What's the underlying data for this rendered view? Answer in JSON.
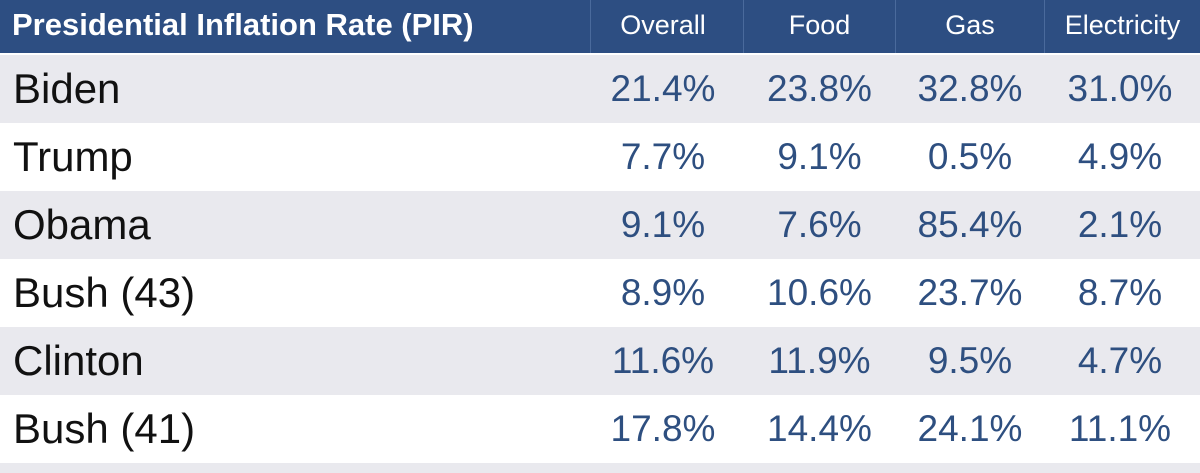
{
  "chart_data": {
    "type": "table",
    "title": "Presidential Inflation Rate (PIR)",
    "columns": [
      "Overall",
      "Food",
      "Gas",
      "Electricity"
    ],
    "rows": [
      {
        "name": "Biden",
        "values": [
          "21.4%",
          "23.8%",
          "32.8%",
          "31.0%"
        ]
      },
      {
        "name": "Trump",
        "values": [
          "7.7%",
          "9.1%",
          "0.5%",
          "4.9%"
        ]
      },
      {
        "name": "Obama",
        "values": [
          "9.1%",
          "7.6%",
          "85.4%",
          "2.1%"
        ]
      },
      {
        "name": "Bush (43)",
        "values": [
          "8.9%",
          "10.6%",
          "23.7%",
          "8.7%"
        ]
      },
      {
        "name": "Clinton",
        "values": [
          "11.6%",
          "11.9%",
          "9.5%",
          "4.7%"
        ]
      },
      {
        "name": "Bush (41)",
        "values": [
          "17.8%",
          "14.4%",
          "24.1%",
          "11.1%"
        ]
      }
    ]
  },
  "colors": {
    "header_bg": "#2d4e82",
    "header_text": "#ffffff",
    "row_shade": "#e9e9ee",
    "name_text": "#111111",
    "value_text": "#2e4f80"
  }
}
